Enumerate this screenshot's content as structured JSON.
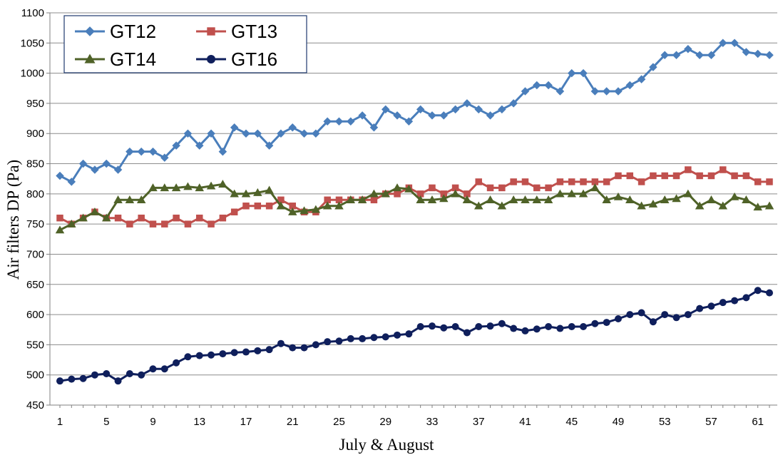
{
  "chart_data": {
    "type": "line",
    "title": "",
    "xlabel": "July & August",
    "ylabel": "Air filters DP (Pa)",
    "ylim": [
      450,
      1100
    ],
    "xlim": [
      1,
      62
    ],
    "yticks": [
      450,
      500,
      550,
      600,
      650,
      700,
      750,
      800,
      850,
      900,
      950,
      1000,
      1050,
      1100
    ],
    "xticks": [
      1,
      5,
      9,
      13,
      17,
      21,
      25,
      29,
      33,
      37,
      41,
      45,
      49,
      53,
      57,
      61
    ],
    "grid": "horizontal",
    "legend_position": "top-left",
    "x": [
      1,
      2,
      3,
      4,
      5,
      6,
      7,
      8,
      9,
      10,
      11,
      12,
      13,
      14,
      15,
      16,
      17,
      18,
      19,
      20,
      21,
      22,
      23,
      24,
      25,
      26,
      27,
      28,
      29,
      30,
      31,
      32,
      33,
      34,
      35,
      36,
      37,
      38,
      39,
      40,
      41,
      42,
      43,
      44,
      45,
      46,
      47,
      48,
      49,
      50,
      51,
      52,
      53,
      54,
      55,
      56,
      57,
      58,
      59,
      60,
      61,
      62
    ],
    "series": [
      {
        "name": "GT12",
        "color": "#4a7ebb",
        "marker": "diamond",
        "values": [
          830,
          820,
          850,
          840,
          850,
          840,
          870,
          870,
          870,
          860,
          880,
          900,
          880,
          900,
          870,
          910,
          900,
          900,
          880,
          900,
          910,
          900,
          900,
          920,
          920,
          920,
          930,
          910,
          940,
          930,
          920,
          940,
          930,
          930,
          940,
          950,
          940,
          930,
          940,
          950,
          970,
          980,
          980,
          970,
          1000,
          1000,
          970,
          970,
          970,
          980,
          990,
          1010,
          1030,
          1030,
          1040,
          1030,
          1030,
          1050,
          1050,
          1035,
          1032,
          1030
        ]
      },
      {
        "name": "GT13",
        "color": "#c0504d",
        "marker": "square",
        "values": [
          760,
          750,
          760,
          770,
          760,
          760,
          750,
          760,
          750,
          750,
          760,
          750,
          760,
          750,
          760,
          770,
          780,
          780,
          780,
          790,
          780,
          770,
          770,
          790,
          790,
          790,
          790,
          790,
          800,
          800,
          810,
          800,
          810,
          800,
          810,
          800,
          820,
          810,
          810,
          820,
          820,
          810,
          810,
          820,
          820,
          820,
          820,
          820,
          830,
          830,
          820,
          830,
          830,
          830,
          840,
          830,
          830,
          840,
          830,
          830,
          820,
          820
        ]
      },
      {
        "name": "GT14",
        "color": "#4f6228",
        "marker": "triangle",
        "values": [
          740,
          750,
          760,
          770,
          760,
          790,
          790,
          790,
          810,
          810,
          810,
          812,
          810,
          813,
          816,
          800,
          800,
          802,
          806,
          780,
          770,
          772,
          774,
          780,
          780,
          790,
          790,
          800,
          800,
          810,
          808,
          790,
          790,
          792,
          800,
          790,
          780,
          790,
          780,
          790,
          790,
          790,
          790,
          800,
          800,
          800,
          810,
          790,
          795,
          790,
          780,
          783,
          790,
          792,
          800,
          780,
          790,
          780,
          795,
          790,
          778,
          780
        ]
      },
      {
        "name": "GT16",
        "color": "#0f1f5c",
        "marker": "circle",
        "values": [
          490,
          493,
          494,
          500,
          502,
          490,
          502,
          500,
          510,
          510,
          520,
          530,
          532,
          533,
          535,
          537,
          538,
          540,
          542,
          552,
          545,
          545,
          550,
          555,
          556,
          560,
          560,
          562,
          563,
          566,
          568,
          580,
          581,
          578,
          580,
          570,
          580,
          581,
          585,
          577,
          573,
          576,
          580,
          577,
          580,
          580,
          585,
          587,
          593,
          600,
          603,
          588,
          600,
          595,
          600,
          610,
          614,
          620,
          623,
          628,
          640,
          636
        ]
      }
    ]
  }
}
